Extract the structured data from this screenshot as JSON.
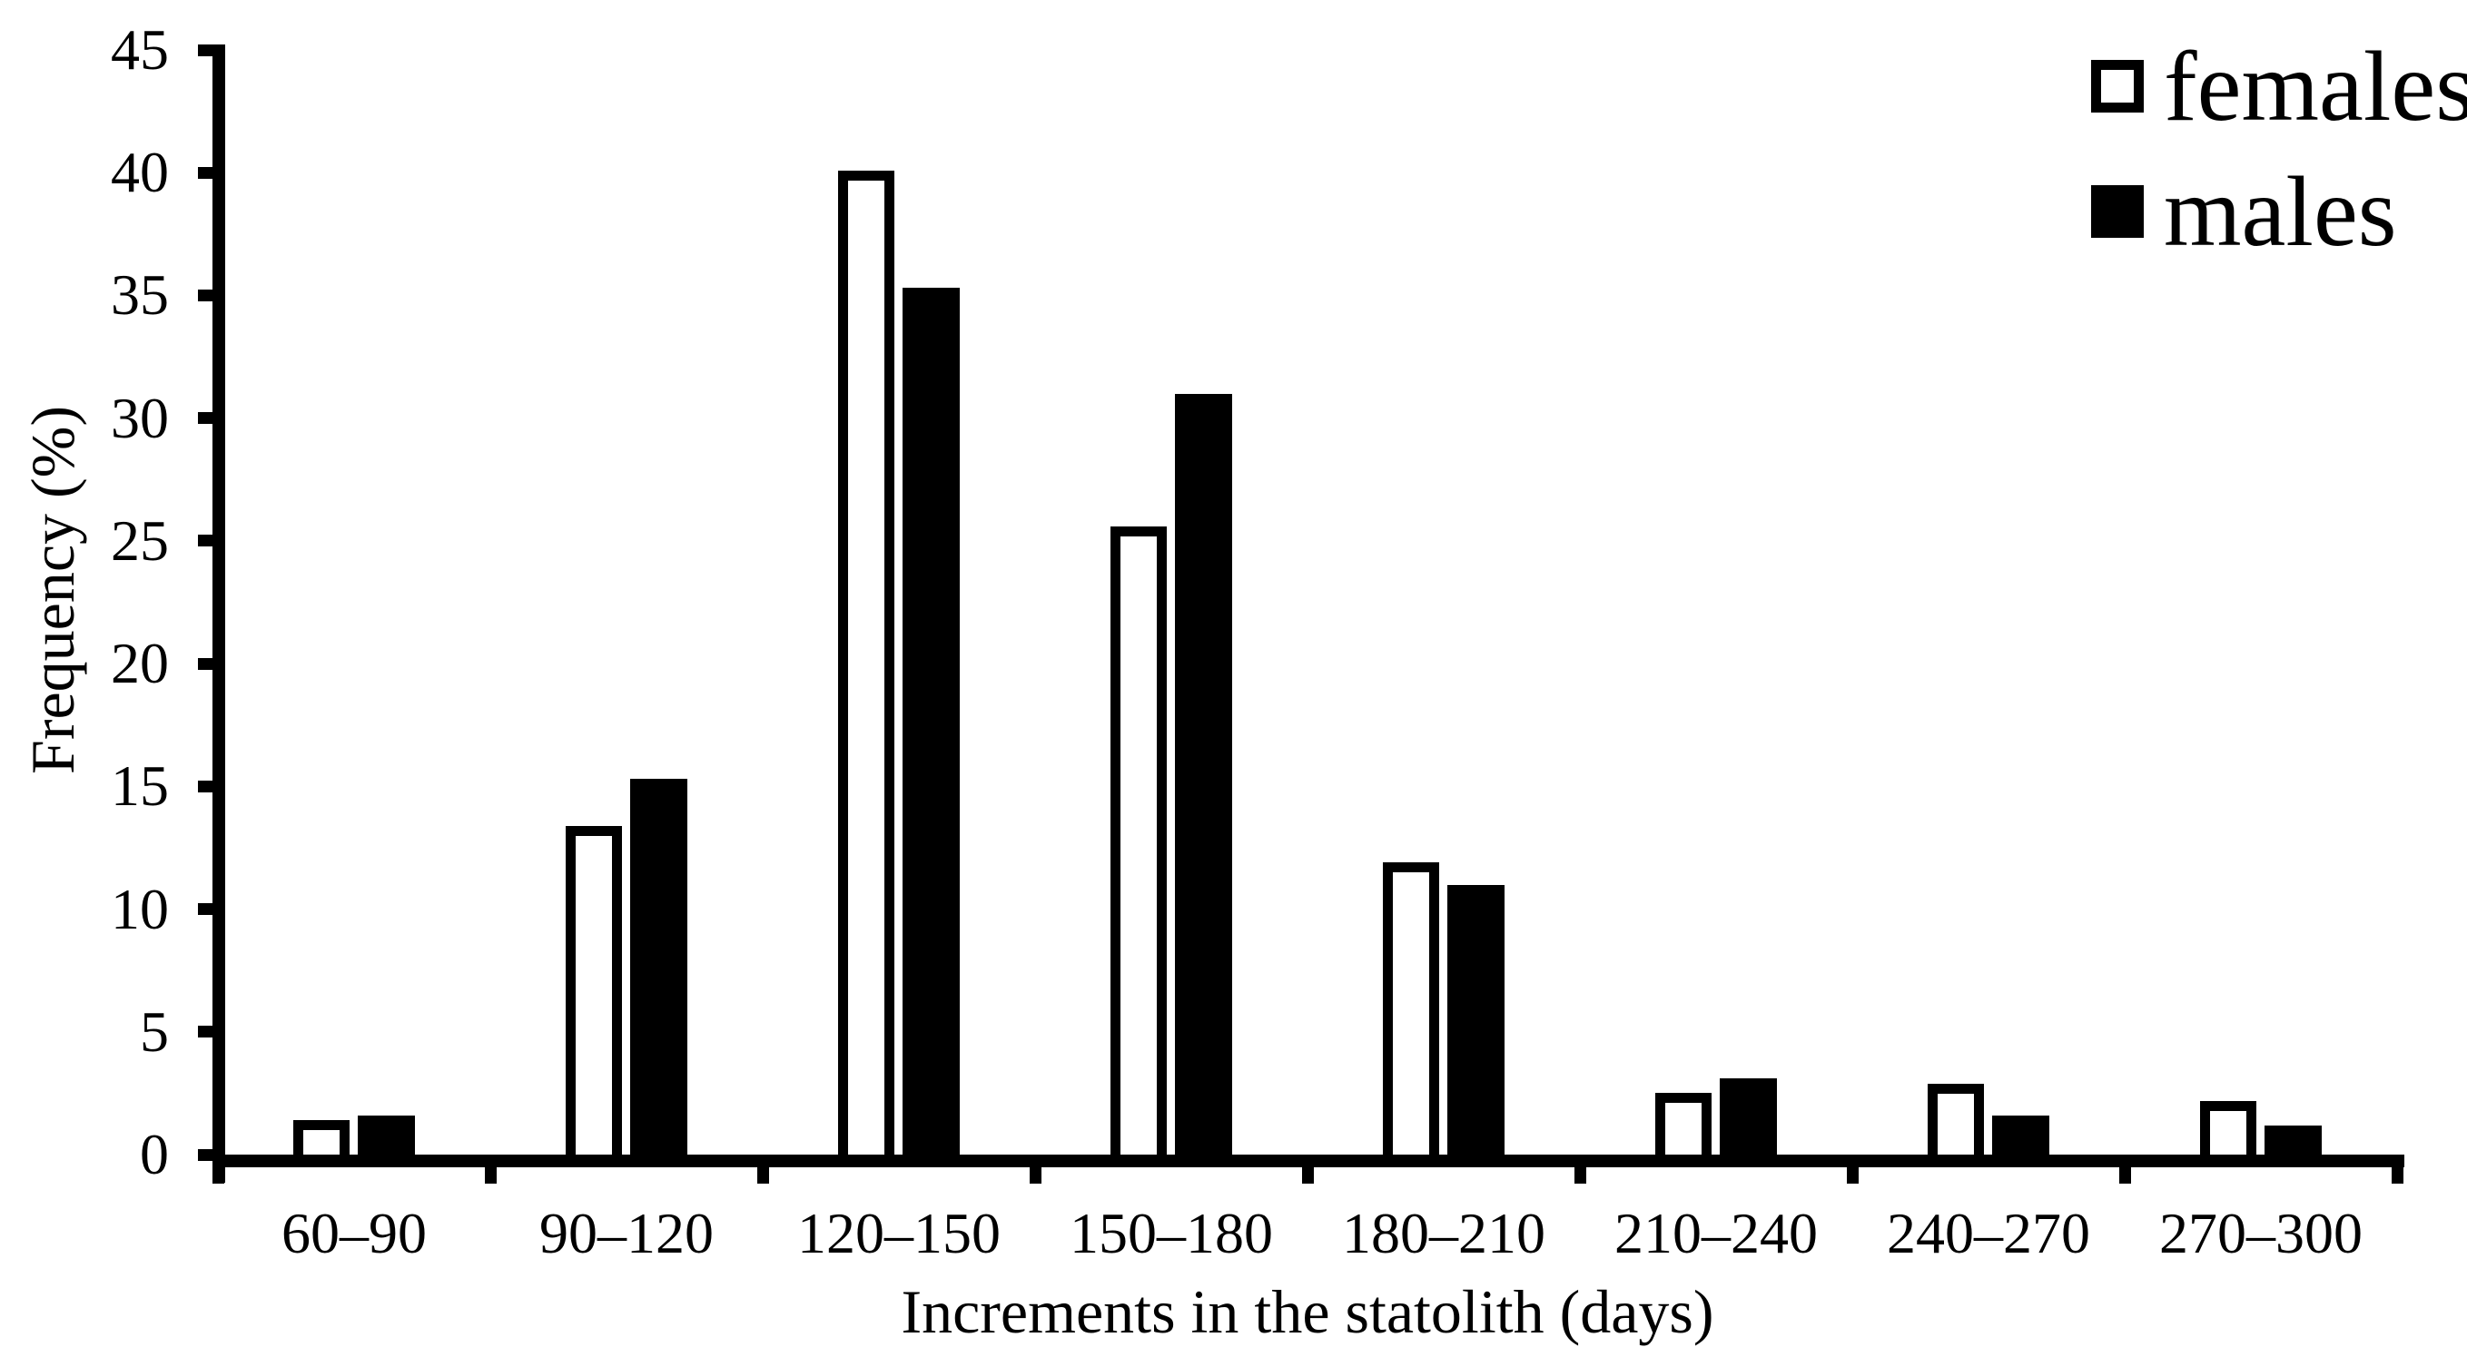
{
  "chart_data": {
    "type": "bar",
    "title": "",
    "categories": [
      "60–90",
      "90–120",
      "120–150",
      "150–180",
      "180–210",
      "210–240",
      "240–270",
      "270–300"
    ],
    "series": [
      {
        "name": "females",
        "style": "open",
        "fill": "#ffffff",
        "border": "#000000",
        "values": [
          1.4,
          13.4,
          40.1,
          25.6,
          11.9,
          2.5,
          2.9,
          2.2
        ]
      },
      {
        "name": "males",
        "style": "filled",
        "fill": "#000000",
        "values": [
          1.6,
          15.3,
          35.3,
          31.0,
          11.0,
          3.1,
          1.6,
          1.2
        ]
      }
    ],
    "xlabel": "Increments in the statolith (days)",
    "ylabel": "Frequency (%)",
    "ylim": [
      0,
      45
    ],
    "yticks": [
      0,
      5,
      10,
      15,
      20,
      25,
      30,
      35,
      40,
      45
    ],
    "grid": false,
    "legend_position": "top-right"
  },
  "colors": {
    "foreground": "#000000",
    "background": "#ffffff"
  }
}
